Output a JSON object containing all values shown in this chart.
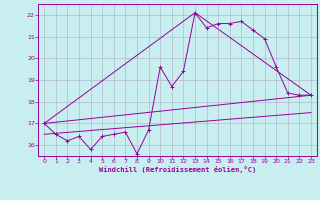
{
  "bg_color": "#c8eef0",
  "line_color": "#990099",
  "grid_color": "#b0b8cc",
  "xlabel": "Windchill (Refroidissement éolien,°C)",
  "xlim": [
    -0.5,
    23.5
  ],
  "ylim": [
    15.5,
    22.5
  ],
  "yticks": [
    16,
    17,
    18,
    19,
    20,
    21,
    22
  ],
  "xticks": [
    0,
    1,
    2,
    3,
    4,
    5,
    6,
    7,
    8,
    9,
    10,
    11,
    12,
    13,
    14,
    15,
    16,
    17,
    18,
    19,
    20,
    21,
    22,
    23
  ],
  "series1_x": [
    0,
    1,
    2,
    3,
    4,
    5,
    6,
    7,
    8,
    9,
    10,
    11,
    12,
    13,
    14,
    15,
    16,
    17,
    18,
    19,
    20,
    21,
    22,
    23
  ],
  "series1_y": [
    17.0,
    16.5,
    16.2,
    16.4,
    15.8,
    16.4,
    16.5,
    16.6,
    15.6,
    16.7,
    19.6,
    18.7,
    19.4,
    22.1,
    21.4,
    21.6,
    21.6,
    21.7,
    21.3,
    20.9,
    19.6,
    18.4,
    18.3,
    18.3
  ],
  "series2_x": [
    0,
    23
  ],
  "series2_y": [
    17.0,
    18.3
  ],
  "series3_x": [
    0,
    13,
    23
  ],
  "series3_y": [
    17.0,
    22.1,
    18.3
  ],
  "series4_x": [
    0,
    23
  ],
  "series4_y": [
    16.5,
    17.5
  ]
}
